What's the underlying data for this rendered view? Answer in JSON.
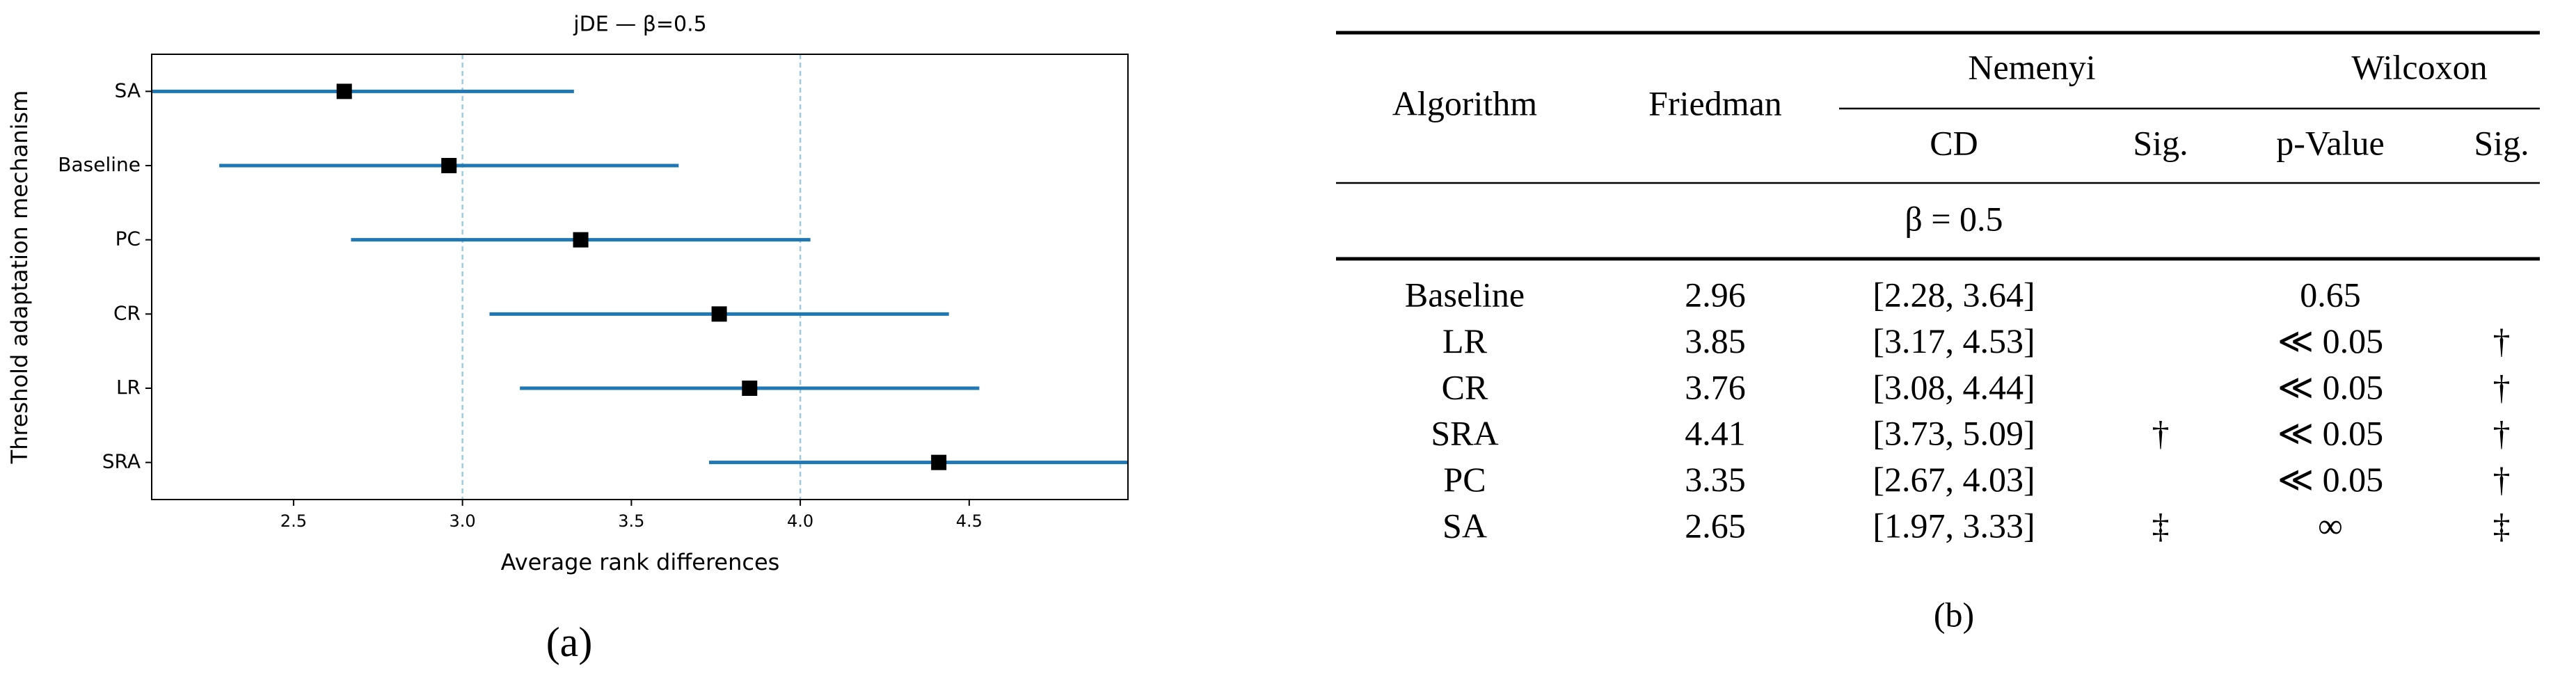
{
  "chart_data": {
    "type": "dotplot",
    "title": "jDE — β=0.5",
    "x_label": "Average rank differences",
    "y_label": "Threshold adaptation mechanism",
    "caption": "(a)",
    "categories": [
      "SA",
      "Baseline",
      "PC",
      "CR",
      "LR",
      "SRA"
    ],
    "values": [
      2.65,
      2.96,
      3.35,
      3.76,
      3.85,
      4.41
    ],
    "errors": [
      0.68,
      0.68,
      0.68,
      0.68,
      0.68,
      0.68
    ],
    "line_color": "#1f77b4",
    "marker_color": "#000000",
    "xlim": [
      2.08,
      4.97
    ],
    "xticks": [
      {
        "value": 2.5,
        "label": "2.5"
      },
      {
        "value": 3.0,
        "label": "3.0"
      },
      {
        "value": 3.5,
        "label": "3.5"
      },
      {
        "value": 4.0,
        "label": "4.0"
      },
      {
        "value": 4.5,
        "label": "4.5"
      }
    ],
    "reference_lines": [
      3.0,
      4.0
    ],
    "reference_color": "#9ecae1"
  },
  "table": {
    "caption": "(b)",
    "header": {
      "algorithm": "Algorithm",
      "friedman": "Friedman",
      "nemenyi": "Nemenyi",
      "wilcoxon": "Wilcoxon",
      "cd": "CD",
      "cd_sig": "Sig.",
      "p_value": "p-Value",
      "w_sig": "Sig."
    },
    "group": "β = 0.5",
    "rows": [
      {
        "algorithm": "Baseline",
        "friedman": "2.96",
        "cd": "[2.28, 3.64]",
        "p_value": "0.65"
      },
      {
        "algorithm": "LR",
        "friedman": "3.85",
        "cd": "[3.17, 4.53]",
        "p_value": "≪ 0.05",
        "w_sig": "†"
      },
      {
        "algorithm": "CR",
        "friedman": "3.76",
        "cd": "[3.08, 4.44]",
        "p_value": "≪ 0.05",
        "w_sig": "†"
      },
      {
        "algorithm": "SRA",
        "friedman": "4.41",
        "cd": "[3.73, 5.09]",
        "cd_sig": "†",
        "p_value": "≪ 0.05",
        "w_sig": "†"
      },
      {
        "algorithm": "PC",
        "friedman": "3.35",
        "cd": "[2.67, 4.03]",
        "p_value": "≪ 0.05",
        "w_sig": "†"
      },
      {
        "algorithm": "SA",
        "friedman": "2.65",
        "cd": "[1.97, 3.33]",
        "cd_sig": "‡",
        "p_value": "∞",
        "w_sig": "‡"
      }
    ]
  }
}
